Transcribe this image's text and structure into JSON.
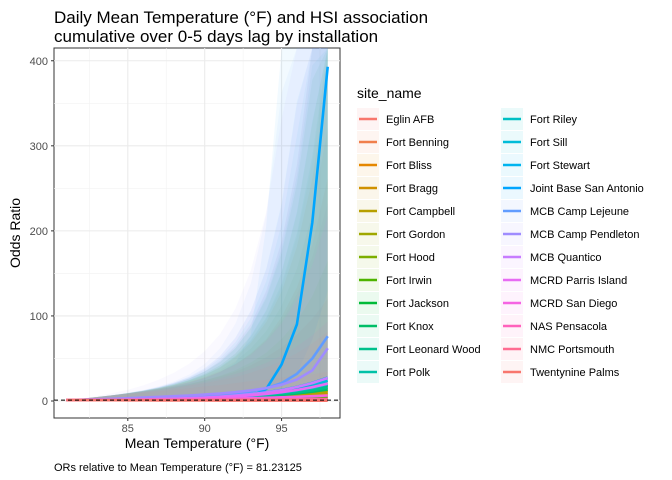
{
  "chart_data": {
    "type": "line",
    "title_lines": [
      "Daily Mean Temperature (°F) and HSI association",
      "cumulative over 0-5 days lag by installation"
    ],
    "xlabel": "Mean Temperature (°F)",
    "ylabel": "Odds Ratio",
    "caption": "ORs relative to Mean Temperature (°F) = 81.23125",
    "xlim": [
      80.2,
      98.8
    ],
    "ylim": [
      -20,
      415
    ],
    "x_ticks": [
      85,
      90,
      95
    ],
    "y_ticks": [
      0,
      100,
      200,
      300,
      400
    ],
    "reference_line_y": 1,
    "grid": true,
    "legend": {
      "title": "site_name",
      "placement": "right",
      "columns": 2
    },
    "x": [
      81,
      82,
      83,
      84,
      85,
      86,
      87,
      88,
      89,
      90,
      91,
      92,
      93,
      94,
      95,
      96,
      97,
      98
    ],
    "series": [
      {
        "name": "Eglin AFB",
        "color": "#F8766D",
        "values": [
          1,
          1,
          1.1,
          1.2,
          1.3,
          1.4,
          1.5,
          1.6,
          1.7,
          1.8,
          1.9,
          2.0,
          2.2,
          2.4,
          2.6,
          2.8,
          3.0,
          3.2
        ]
      },
      {
        "name": "Fort Benning",
        "color": "#F07F4C",
        "values": [
          1,
          1,
          1.1,
          1.2,
          1.3,
          1.5,
          1.7,
          1.9,
          2.1,
          2.4,
          2.7,
          3.0,
          3.4,
          3.9,
          4.5,
          5.2,
          6.0,
          7.0
        ]
      },
      {
        "name": "Fort Bliss",
        "color": "#E58700",
        "values": [
          1,
          1,
          1.1,
          1.2,
          1.3,
          1.5,
          1.6,
          1.8,
          2.0,
          2.3,
          2.6,
          3.0,
          3.5,
          4.0,
          4.8,
          5.6,
          6.6,
          8.0
        ]
      },
      {
        "name": "Fort Bragg",
        "color": "#D09100",
        "values": [
          1,
          1,
          1.1,
          1.2,
          1.4,
          1.6,
          1.8,
          2.1,
          2.4,
          2.8,
          3.3,
          3.9,
          4.6,
          5.5,
          6.6,
          8.0,
          9.8,
          12.0
        ]
      },
      {
        "name": "Fort Campbell",
        "color": "#B79F00",
        "values": [
          1,
          1,
          1.1,
          1.2,
          1.3,
          1.5,
          1.7,
          1.9,
          2.2,
          2.5,
          2.9,
          3.4,
          4.0,
          4.7,
          5.6,
          6.7,
          8.1,
          10.0
        ]
      },
      {
        "name": "Fort Gordon",
        "color": "#9FA700",
        "values": [
          1,
          1,
          1.1,
          1.2,
          1.4,
          1.6,
          1.8,
          2.1,
          2.5,
          2.9,
          3.4,
          4.0,
          4.8,
          5.8,
          7.0,
          8.6,
          10.6,
          13.0
        ]
      },
      {
        "name": "Fort Hood",
        "color": "#7CAE00",
        "values": [
          1,
          1,
          1.1,
          1.2,
          1.4,
          1.6,
          1.9,
          2.2,
          2.6,
          3.1,
          3.7,
          4.4,
          5.3,
          6.5,
          8.0,
          10.0,
          12.5,
          16.0
        ]
      },
      {
        "name": "Fort Irwin",
        "color": "#4DB300",
        "values": [
          1,
          1,
          1.1,
          1.1,
          1.2,
          1.3,
          1.4,
          1.5,
          1.6,
          1.8,
          2.0,
          2.2,
          2.5,
          2.8,
          3.2,
          3.6,
          4.1,
          4.7
        ]
      },
      {
        "name": "Fort Jackson",
        "color": "#00BA38",
        "values": [
          1,
          1,
          1.1,
          1.2,
          1.4,
          1.7,
          2.0,
          2.4,
          2.9,
          3.5,
          4.2,
          5.1,
          6.2,
          7.6,
          9.4,
          11.7,
          14.6,
          18.5
        ]
      },
      {
        "name": "Fort Knox",
        "color": "#00BE67",
        "values": [
          1,
          1,
          1.1,
          1.2,
          1.4,
          1.6,
          1.8,
          2.1,
          2.5,
          2.9,
          3.4,
          4.1,
          4.9,
          5.9,
          7.2,
          8.8,
          10.9,
          13.5
        ]
      },
      {
        "name": "Fort Leonard Wood",
        "color": "#00C08B",
        "values": [
          1,
          1,
          1.1,
          1.2,
          1.4,
          1.6,
          1.9,
          2.2,
          2.6,
          3.1,
          3.7,
          4.4,
          5.4,
          6.6,
          8.1,
          10.1,
          12.6,
          15.8
        ]
      },
      {
        "name": "Fort Polk",
        "color": "#00C1A7",
        "values": [
          1,
          1,
          1.1,
          1.3,
          1.5,
          1.8,
          2.1,
          2.5,
          3.0,
          3.6,
          4.4,
          5.4,
          6.6,
          8.2,
          10.2,
          12.8,
          16.1,
          20.5
        ]
      },
      {
        "name": "Fort Riley",
        "color": "#00BFC4",
        "values": [
          1,
          1,
          1.1,
          1.3,
          1.5,
          1.7,
          2.0,
          2.4,
          2.9,
          3.5,
          4.2,
          5.1,
          6.3,
          7.8,
          9.7,
          12.2,
          15.3,
          19.3
        ]
      },
      {
        "name": "Fort Sill",
        "color": "#00BCD8",
        "values": [
          1,
          1,
          1.1,
          1.3,
          1.5,
          1.8,
          2.2,
          2.7,
          3.2,
          3.9,
          4.8,
          5.9,
          7.3,
          9.1,
          11.5,
          14.6,
          18.6,
          23.8
        ]
      },
      {
        "name": "Fort Stewart",
        "color": "#00B4EF",
        "values": [
          1,
          1,
          1.1,
          1.3,
          1.6,
          1.9,
          2.3,
          2.8,
          3.4,
          4.2,
          5.2,
          6.5,
          8.1,
          10.2,
          13.0,
          16.6,
          21.3,
          27.5
        ]
      },
      {
        "name": "Joint Base San Antonio",
        "color": "#00A5FF",
        "values": [
          1,
          1,
          1.1,
          1.2,
          1.3,
          1.4,
          1.5,
          1.7,
          1.9,
          2.2,
          2.6,
          3.2,
          5.5,
          14,
          43,
          90,
          210,
          393
        ]
      },
      {
        "name": "MCB Camp Lejeune",
        "color": "#619CFF",
        "values": [
          1,
          1,
          1.2,
          1.4,
          1.7,
          2.0,
          2.5,
          3.1,
          3.9,
          5.0,
          6.4,
          8.3,
          11,
          15,
          21,
          32,
          50,
          76
        ]
      },
      {
        "name": "MCB Camp Pendleton",
        "color": "#9F8CFF",
        "values": [
          1.1,
          1.5,
          2.0,
          2.6,
          3.3,
          4.0,
          4.8,
          5.6,
          6.5,
          7.5,
          8.7,
          10.3,
          12.4,
          15.2,
          19.1,
          25.3,
          36,
          62
        ]
      },
      {
        "name": "MCB Quantico",
        "color": "#C77CFF",
        "values": [
          1,
          1,
          1.1,
          1.3,
          1.5,
          1.8,
          2.2,
          2.7,
          3.3,
          4.1,
          5.1,
          6.4,
          8.0,
          10.1,
          12.8,
          16.4,
          21.0,
          27.0
        ]
      },
      {
        "name": "MCRD Parris Island",
        "color": "#E76BF3",
        "values": [
          1,
          1,
          1.1,
          1.3,
          1.5,
          1.8,
          2.1,
          2.5,
          3.0,
          3.6,
          4.4,
          5.4,
          6.7,
          8.3,
          10.3,
          12.9,
          16.2,
          20.5
        ]
      },
      {
        "name": "MCRD San Diego",
        "color": "#F564E3",
        "values": [
          1,
          1,
          1.1,
          1.2,
          1.3,
          1.5,
          1.6,
          1.8,
          2.0,
          2.3,
          2.6,
          2.9,
          3.3,
          3.8,
          4.3,
          4.9,
          5.6,
          6.5
        ]
      },
      {
        "name": "NAS Pensacola",
        "color": "#FF62BC",
        "values": [
          1,
          1,
          1.0,
          1.1,
          1.1,
          1.2,
          1.2,
          1.3,
          1.4,
          1.5,
          1.6,
          1.7,
          1.8,
          1.9,
          2.0,
          2.1,
          2.2,
          2.3
        ]
      },
      {
        "name": "NMC Portsmouth",
        "color": "#FF6C91",
        "values": [
          1,
          1,
          1.0,
          1.0,
          1.0,
          1.1,
          1.1,
          1.1,
          1.2,
          1.2,
          1.3,
          1.3,
          1.4,
          1.5,
          1.6,
          1.7,
          1.8,
          1.9
        ]
      },
      {
        "name": "Twentynine Palms",
        "color": "#F8766D",
        "values": [
          1,
          1,
          0.9,
          0.9,
          0.8,
          0.8,
          0.7,
          0.7,
          0.6,
          0.6,
          0.5,
          0.5,
          0.5,
          0.4,
          0.4,
          0.4,
          0.3,
          0.3
        ]
      }
    ]
  }
}
